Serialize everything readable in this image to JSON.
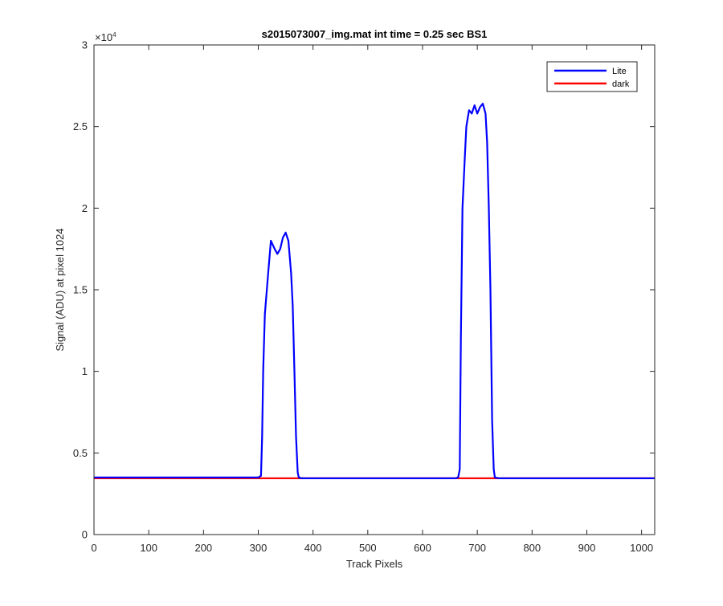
{
  "chart_data": {
    "type": "line",
    "title": "s2015073007_img.mat int time = 0.25 sec   BS1",
    "xlabel": "Track Pixels",
    "ylabel": "Signal (ADU) at pixel 1024",
    "xlim": [
      0,
      1024
    ],
    "ylim": [
      0,
      30000
    ],
    "y_exponent_label": "×10",
    "y_exponent_power": "4",
    "x_ticks": [
      0,
      100,
      200,
      300,
      400,
      500,
      600,
      700,
      800,
      900,
      1000
    ],
    "x_tick_labels": [
      "0",
      "100",
      "200",
      "300",
      "400",
      "500",
      "600",
      "700",
      "800",
      "900",
      "1000"
    ],
    "y_ticks": [
      0,
      5000,
      10000,
      15000,
      20000,
      25000,
      30000
    ],
    "y_tick_labels": [
      "0",
      "0.5",
      "1",
      "1.5",
      "2",
      "2.5",
      "3"
    ],
    "grid": false,
    "legend_position": "top-right",
    "series": [
      {
        "name": "Lite",
        "color": "#0000ff",
        "x": [
          0,
          300,
          305,
          307,
          309,
          312,
          318,
          323,
          330,
          335,
          340,
          345,
          350,
          355,
          360,
          363,
          366,
          369,
          372,
          374,
          380,
          660,
          665,
          668,
          670,
          673,
          677,
          680,
          685,
          690,
          695,
          700,
          705,
          710,
          715,
          718,
          721,
          724,
          727,
          730,
          732,
          740,
          1024
        ],
        "y": [
          3500,
          3500,
          3600,
          6000,
          10000,
          13500,
          16000,
          18000,
          17500,
          17200,
          17500,
          18200,
          18500,
          18000,
          16000,
          14000,
          10000,
          6000,
          3800,
          3500,
          3450,
          3450,
          3500,
          4000,
          12000,
          20000,
          23000,
          25000,
          26000,
          25800,
          26300,
          25800,
          26200,
          26400,
          25800,
          24000,
          20000,
          15000,
          7000,
          4000,
          3500,
          3450,
          3450
        ]
      },
      {
        "name": "dark",
        "color": "#ff0000",
        "x": [
          0,
          1024
        ],
        "y": [
          3450,
          3450
        ]
      }
    ]
  }
}
